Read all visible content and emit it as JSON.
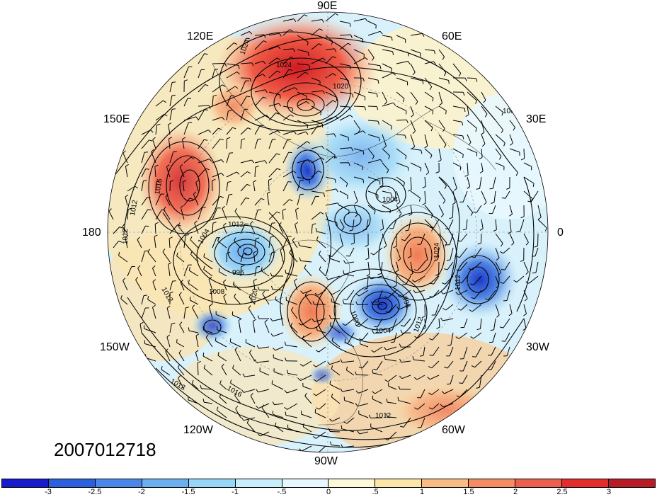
{
  "map": {
    "date_stamp": "2007012718",
    "lon_labels": {
      "e90": "90E",
      "e120": "120E",
      "e60": "60E",
      "e150": "150E",
      "e30": "30E",
      "w180": "180",
      "zero": "0",
      "w150": "150W",
      "w30": "30W",
      "w120": "120W",
      "w60": "60W",
      "w90": "90W"
    },
    "isobar_labels": [
      "1024",
      "1024",
      "1020",
      "1016",
      "1012",
      "1012",
      "1012",
      "1008",
      "1004",
      "996",
      "1012",
      "1008",
      "1004",
      "1000",
      "996",
      "1012",
      "1004",
      "1012",
      "1016",
      "1012",
      "1024",
      "1012",
      "1020"
    ]
  },
  "anomalies": [
    {
      "kind": "positive",
      "color": "#e8252b",
      "intensity": 3
    },
    {
      "kind": "positive",
      "color": "#f57c5c",
      "intensity": 2
    },
    {
      "kind": "negative",
      "color": "#1f3fcf",
      "intensity": -3
    },
    {
      "kind": "negative",
      "color": "#4a7fe0",
      "intensity": -2
    }
  ],
  "colorbar": {
    "colors": [
      "#1a1acd",
      "#2a5fdd",
      "#4a86e8",
      "#6aaff0",
      "#96d6f6",
      "#c7eefb",
      "#e6f8fd",
      "#fdf8d8",
      "#fde5a8",
      "#f9bc82",
      "#f48b62",
      "#ec5f4c",
      "#e22d2c",
      "#b71c26"
    ],
    "labels": [
      "-3",
      "-2.5",
      "-2",
      "-1.5",
      "-1",
      "-.5",
      "0",
      ".5",
      "1",
      "1.5",
      "2",
      "2.5",
      "3"
    ]
  }
}
